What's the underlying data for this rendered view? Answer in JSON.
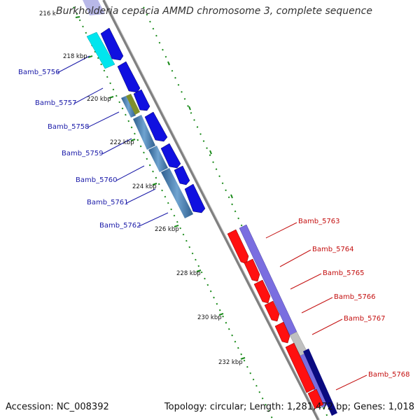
{
  "title": "Burkholderia cepacia AMMD chromosome 3, complete sequence",
  "accession": "Accession: NC_008392",
  "summary": "Topology: circular; Length: 1,281,472 bp; Genes: 1,018",
  "ticks": [
    {
      "label": "216 k"
    },
    {
      "label": "218 kbp"
    },
    {
      "label": "220 kbp"
    },
    {
      "label": "222 kbp"
    },
    {
      "label": "224 kbp"
    },
    {
      "label": "226 kbp"
    },
    {
      "label": "228 kbp"
    },
    {
      "label": "230 kbp"
    },
    {
      "label": "232 kbp"
    }
  ],
  "genes_left": [
    {
      "label": "Bamb_5756"
    },
    {
      "label": "Bamb_5757"
    },
    {
      "label": "Bamb_5758"
    },
    {
      "label": "Bamb_5759"
    },
    {
      "label": "Bamb_5760"
    },
    {
      "label": "Bamb_5761"
    },
    {
      "label": "Bamb_5762"
    }
  ],
  "genes_right": [
    {
      "label": "Bamb_5763"
    },
    {
      "label": "Bamb_5764"
    },
    {
      "label": "Bamb_5765"
    },
    {
      "label": "Bamb_5766"
    },
    {
      "label": "Bamb_5767"
    },
    {
      "label": "Bamb_5768"
    }
  ],
  "colors": {
    "forward_cds": "#1010e0",
    "reverse_cds": "#ff1010",
    "forward_feature": "#7a6ee0",
    "reverse_feature": "#4682b4",
    "cyan_feature": "#00e5ee",
    "olive_feature": "#7f8f2a",
    "grey_feature": "#c0c0c0",
    "navy_feature": "#0a0a80",
    "backbone": "#808080",
    "tick": "#1a8a1a"
  }
}
